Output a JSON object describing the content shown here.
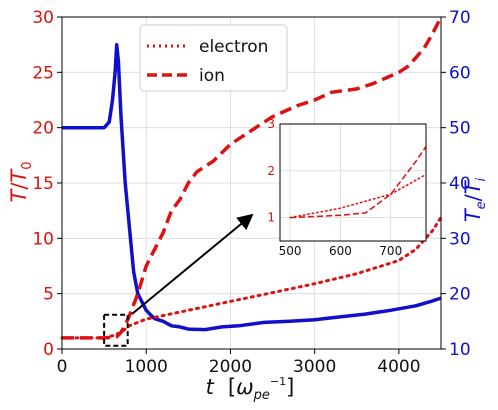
{
  "chart_data": {
    "type": "line",
    "x_axis": {
      "label_main": "t",
      "label_paren_open": "[",
      "label_omega": "ω",
      "label_sub": "pe",
      "label_sup": "−1",
      "label_paren_close": "]",
      "range": [
        0,
        4500
      ],
      "ticks": [
        "0",
        "1000",
        "2000",
        "3000",
        "4000"
      ]
    },
    "y_left": {
      "label_top": "T",
      "label_slash": "/",
      "label_bottom": "T",
      "label_sub": "0",
      "range": [
        0,
        30
      ],
      "ticks": [
        "0",
        "5",
        "10",
        "15",
        "20",
        "25",
        "30"
      ],
      "color": "#dd1111"
    },
    "y_right": {
      "label_top": "T",
      "label_sub_top": "e",
      "label_slash": "/",
      "label_bottom": "T",
      "label_sub_bottom": "i",
      "range": [
        10,
        70
      ],
      "ticks": [
        "10",
        "20",
        "30",
        "40",
        "50",
        "60",
        "70"
      ],
      "color": "#1010cc"
    },
    "grid": true,
    "legend": {
      "position": "top-center"
    },
    "series": [
      {
        "name": "electron",
        "axis": "left",
        "style": "dotted",
        "color": "#dd1111",
        "x": [
          0,
          500,
          600,
          700,
          750,
          800,
          900,
          1000,
          1500,
          2000,
          2500,
          3000,
          3500,
          4000,
          4200,
          4400,
          4500
        ],
        "y": [
          1,
          1,
          1.2,
          1.5,
          1.8,
          2.1,
          2.4,
          2.7,
          3.5,
          4.3,
          5.1,
          5.9,
          6.8,
          8.0,
          9.0,
          10.7,
          11.9
        ]
      },
      {
        "name": "ion",
        "axis": "left",
        "style": "dashed",
        "color": "#dd1111",
        "x": [
          0,
          500,
          600,
          650,
          700,
          750,
          800,
          900,
          1000,
          1100,
          1200,
          1300,
          1400,
          1500,
          1600,
          1800,
          2000,
          2200,
          2500,
          2800,
          3000,
          3200,
          3500,
          3700,
          4000,
          4100,
          4200,
          4300,
          4400,
          4500
        ],
        "y": [
          1,
          1,
          1.05,
          1.1,
          1.5,
          2.2,
          3.0,
          5.0,
          7.5,
          9.0,
          10.5,
          12.5,
          13.5,
          15.0,
          16.0,
          17.0,
          18.5,
          19.5,
          21.0,
          22.0,
          22.5,
          23.2,
          23.5,
          24.0,
          25.0,
          25.5,
          26.3,
          27.2,
          28.5,
          30.0
        ]
      },
      {
        "name": "",
        "axis": "right",
        "style": "solid",
        "color": "#1010cc",
        "x": [
          0,
          400,
          500,
          560,
          600,
          630,
          650,
          670,
          700,
          750,
          800,
          850,
          900,
          950,
          1000,
          1050,
          1100,
          1200,
          1300,
          1400,
          1500,
          1700,
          1900,
          2100,
          2400,
          2700,
          3000,
          3300,
          3600,
          3900,
          4200,
          4400,
          4500
        ],
        "y": [
          50,
          50,
          50,
          51,
          55,
          60,
          65,
          62,
          52,
          40,
          32,
          24,
          20,
          18.5,
          17,
          16.2,
          15.5,
          15,
          14.2,
          14,
          13.6,
          13.5,
          14,
          14.2,
          14.8,
          15,
          15.3,
          15.8,
          16.3,
          17,
          17.8,
          18.7,
          19.2
        ]
      }
    ],
    "inset": {
      "x_range": [
        480,
        770
      ],
      "y_range": [
        0.5,
        3
      ],
      "x_ticks": [
        "500",
        "600",
        "700"
      ],
      "y_ticks": [
        "1",
        "2",
        "3"
      ],
      "zoom_box": {
        "x": [
          500,
          780
        ],
        "y": [
          0.3,
          3.1
        ]
      }
    }
  }
}
